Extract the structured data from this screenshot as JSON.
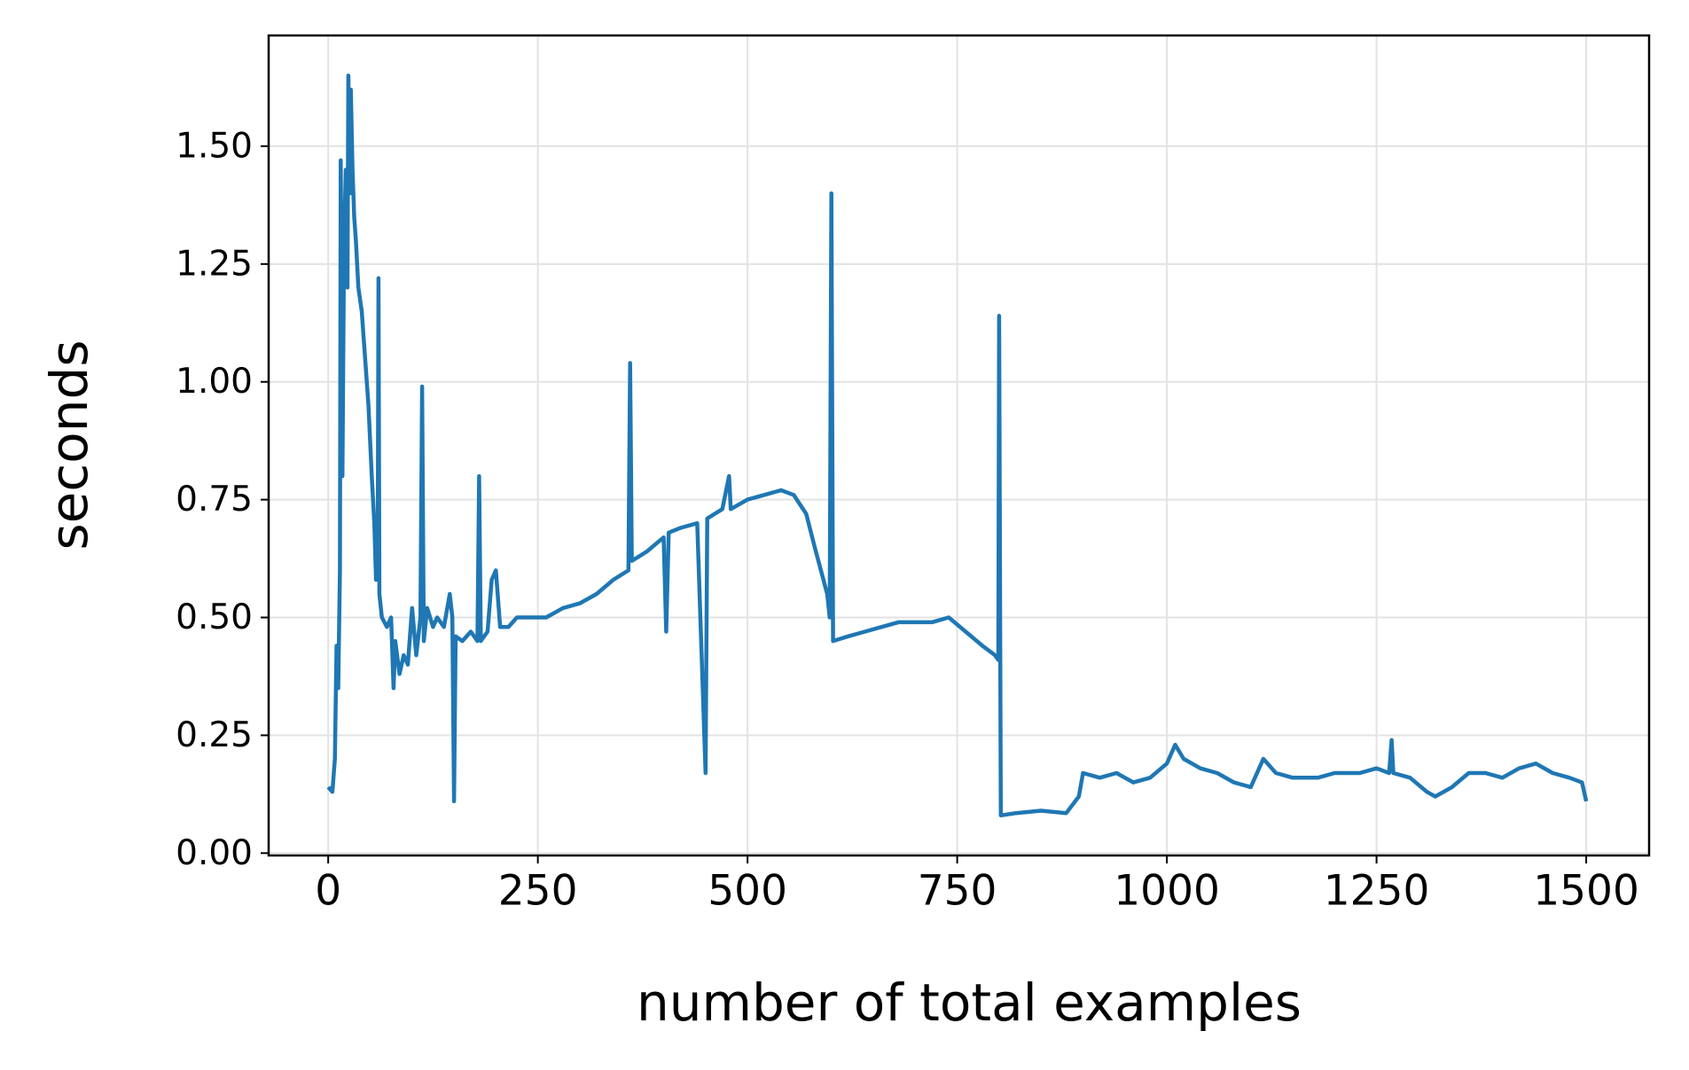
{
  "chart_data": {
    "type": "line",
    "xlabel": "number of total examples",
    "ylabel": "seconds",
    "xlim": [
      -71,
      1575
    ],
    "ylim": [
      -0.005,
      1.735
    ],
    "xticks": [
      0,
      250,
      500,
      750,
      1000,
      1250,
      1500
    ],
    "yticks": [
      {
        "value": 0,
        "label": "0.00"
      },
      {
        "value": 0.25,
        "label": "0.25"
      },
      {
        "value": 0.5,
        "label": "0.50"
      },
      {
        "value": 0.75,
        "label": "0.75"
      },
      {
        "value": 1,
        "label": "1.00"
      },
      {
        "value": 1.25,
        "label": "1.25"
      },
      {
        "value": 1.5,
        "label": "1.50"
      }
    ],
    "grid": true,
    "series": [
      {
        "color": "#1f77b4",
        "x": [
          0,
          5,
          8,
          10,
          12,
          14,
          15,
          17,
          19,
          21,
          23,
          24,
          26,
          27,
          29,
          31,
          33,
          36,
          40,
          44,
          48,
          52,
          55,
          57,
          59,
          60,
          61,
          64,
          70,
          75,
          78,
          80,
          85,
          90,
          95,
          100,
          105,
          110,
          112,
          114,
          118,
          125,
          130,
          138,
          145,
          148,
          150,
          152,
          160,
          170,
          178,
          180,
          182,
          190,
          195,
          200,
          205,
          215,
          225,
          240,
          260,
          280,
          300,
          320,
          340,
          358,
          360,
          362,
          380,
          400,
          403,
          406,
          420,
          440,
          450,
          452,
          470,
          478,
          480,
          500,
          520,
          540,
          555,
          570,
          580,
          595,
          598,
          600,
          602,
          620,
          640,
          660,
          680,
          700,
          720,
          740,
          760,
          780,
          795,
          799,
          800,
          802,
          820,
          850,
          880,
          895,
          900,
          920,
          940,
          960,
          980,
          1000,
          1010,
          1020,
          1040,
          1060,
          1080,
          1100,
          1115,
          1130,
          1150,
          1180,
          1200,
          1230,
          1250,
          1265,
          1268,
          1270,
          1290,
          1310,
          1320,
          1340,
          1360,
          1380,
          1400,
          1420,
          1440,
          1460,
          1480,
          1495,
          1500
        ],
        "values": [
          0.14,
          0.13,
          0.2,
          0.44,
          0.35,
          0.6,
          1.47,
          0.8,
          1.3,
          1.45,
          1.2,
          1.65,
          1.4,
          1.62,
          1.45,
          1.35,
          1.3,
          1.2,
          1.15,
          1.05,
          0.95,
          0.8,
          0.7,
          0.58,
          0.6,
          1.22,
          0.55,
          0.5,
          0.48,
          0.5,
          0.35,
          0.45,
          0.38,
          0.42,
          0.4,
          0.52,
          0.42,
          0.5,
          0.99,
          0.45,
          0.52,
          0.48,
          0.5,
          0.48,
          0.55,
          0.5,
          0.11,
          0.46,
          0.45,
          0.47,
          0.45,
          0.8,
          0.45,
          0.47,
          0.58,
          0.6,
          0.48,
          0.48,
          0.5,
          0.5,
          0.5,
          0.52,
          0.53,
          0.55,
          0.58,
          0.6,
          1.04,
          0.62,
          0.64,
          0.67,
          0.47,
          0.68,
          0.69,
          0.7,
          0.17,
          0.71,
          0.73,
          0.8,
          0.73,
          0.75,
          0.76,
          0.77,
          0.76,
          0.72,
          0.65,
          0.55,
          0.5,
          1.4,
          0.45,
          0.46,
          0.47,
          0.48,
          0.49,
          0.49,
          0.49,
          0.5,
          0.47,
          0.44,
          0.42,
          0.41,
          1.14,
          0.08,
          0.085,
          0.09,
          0.085,
          0.12,
          0.17,
          0.16,
          0.17,
          0.15,
          0.16,
          0.19,
          0.23,
          0.2,
          0.18,
          0.17,
          0.15,
          0.14,
          0.2,
          0.17,
          0.16,
          0.16,
          0.17,
          0.17,
          0.18,
          0.17,
          0.24,
          0.17,
          0.16,
          0.13,
          0.12,
          0.14,
          0.17,
          0.17,
          0.16,
          0.18,
          0.19,
          0.17,
          0.16,
          0.15,
          0.11
        ]
      }
    ]
  }
}
